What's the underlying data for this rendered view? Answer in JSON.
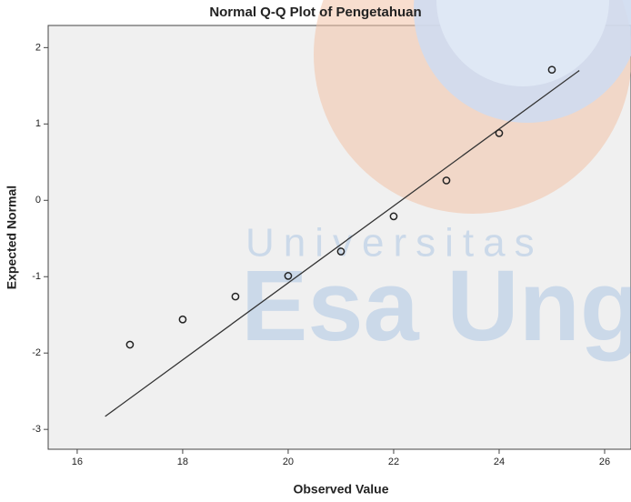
{
  "chart_data": {
    "type": "scatter",
    "title": "Normal Q-Q Plot of Pengetahuan",
    "x_label": "Observed Value",
    "y_label": "Expected Normal",
    "watermark": [
      "Universitas",
      "Esa Ung"
    ],
    "x": [
      17,
      18,
      19,
      20,
      21,
      22,
      23,
      24,
      25
    ],
    "values": [
      -1.89,
      -1.56,
      -1.26,
      -0.99,
      -0.67,
      -0.21,
      0.26,
      0.88,
      1.71
    ],
    "color": "#222222",
    "reference_line": {
      "x": [
        16.53,
        25.52
      ],
      "values": [
        -2.83,
        1.7
      ],
      "color": "#333333"
    },
    "xlim": [
      15.45,
      26.5
    ],
    "xticks": [
      16,
      18,
      20,
      22,
      24,
      26
    ],
    "ylim": [
      -3.26,
      2.29
    ],
    "yticks": [
      -3,
      -2,
      -1,
      0,
      1,
      2
    ],
    "grid": false
  }
}
